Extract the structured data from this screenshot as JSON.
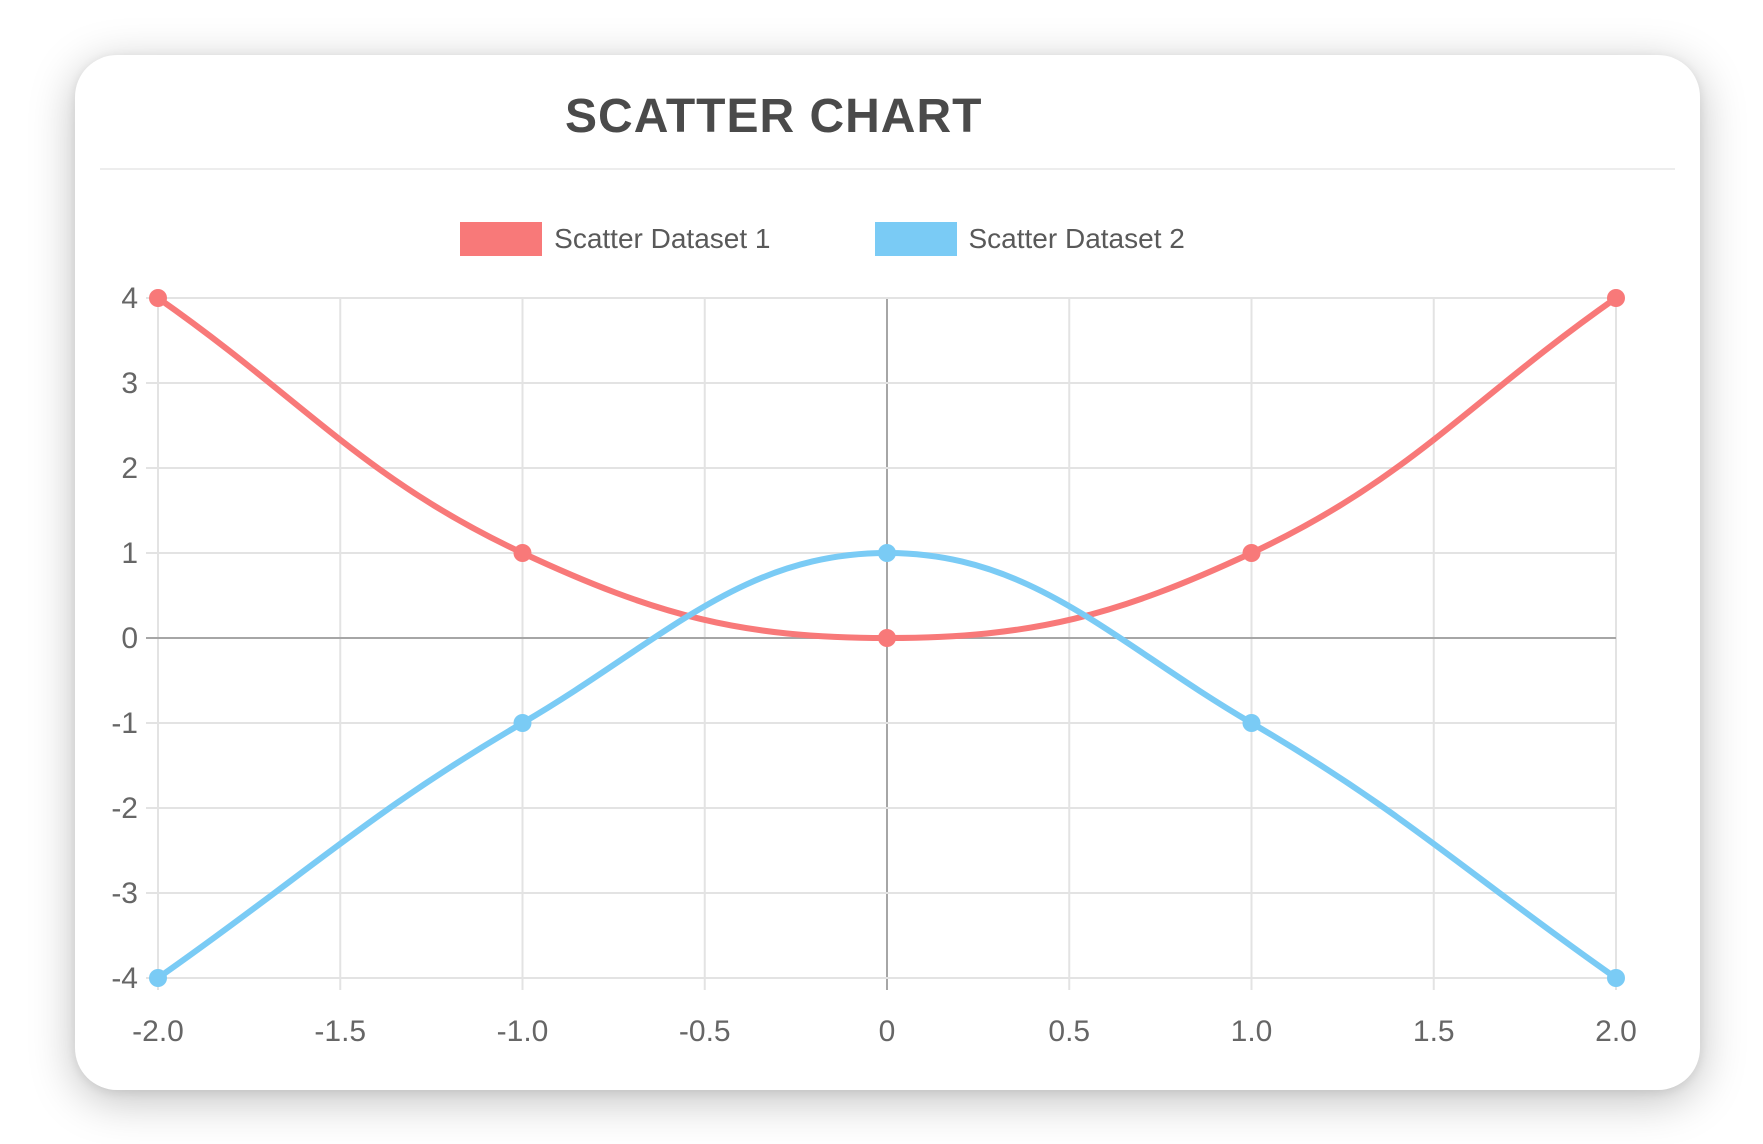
{
  "card": {
    "title": "SCATTER CHART"
  },
  "chart_data": {
    "type": "scatter",
    "title": "SCATTER CHART",
    "series": [
      {
        "name": "Scatter Dataset 1",
        "color": "#f87979",
        "points": [
          {
            "x": -2,
            "y": 4
          },
          {
            "x": -1,
            "y": 1
          },
          {
            "x": 0,
            "y": 0
          },
          {
            "x": 1,
            "y": 1
          },
          {
            "x": 2,
            "y": 4
          }
        ]
      },
      {
        "name": "Scatter Dataset 2",
        "color": "#7acbf5",
        "points": [
          {
            "x": -2,
            "y": -4
          },
          {
            "x": -1,
            "y": -1
          },
          {
            "x": 0,
            "y": 1
          },
          {
            "x": 1,
            "y": -1
          },
          {
            "x": 2,
            "y": -4
          }
        ]
      }
    ],
    "x_ticks": {
      "values": [
        -2,
        -1.5,
        -1,
        -0.5,
        0,
        0.5,
        1,
        1.5,
        2
      ],
      "labels": [
        "-2.0",
        "-1.5",
        "-1.0",
        "-0.5",
        "0",
        "0.5",
        "1.0",
        "1.5",
        "2.0"
      ]
    },
    "y_ticks": {
      "values": [
        4,
        3,
        2,
        1,
        0,
        -1,
        -2,
        -3,
        -4
      ],
      "labels": [
        "4",
        "3",
        "2",
        "1",
        "0",
        "-1",
        "-2",
        "-3",
        "-4"
      ]
    },
    "xlim": [
      -2,
      2
    ],
    "ylim": [
      -4,
      4
    ],
    "grid": true,
    "legend_position": "top",
    "line_tension": 0.4,
    "line_width": 6,
    "point_radius": 9
  },
  "colors": {
    "grid": "#e3e3e3",
    "zero_line": "#a6a6a6",
    "tick_text": "#666666",
    "title_text": "#4a4a4a",
    "legend_text": "#595959",
    "divider": "#ededed",
    "card_bg": "#ffffff"
  }
}
